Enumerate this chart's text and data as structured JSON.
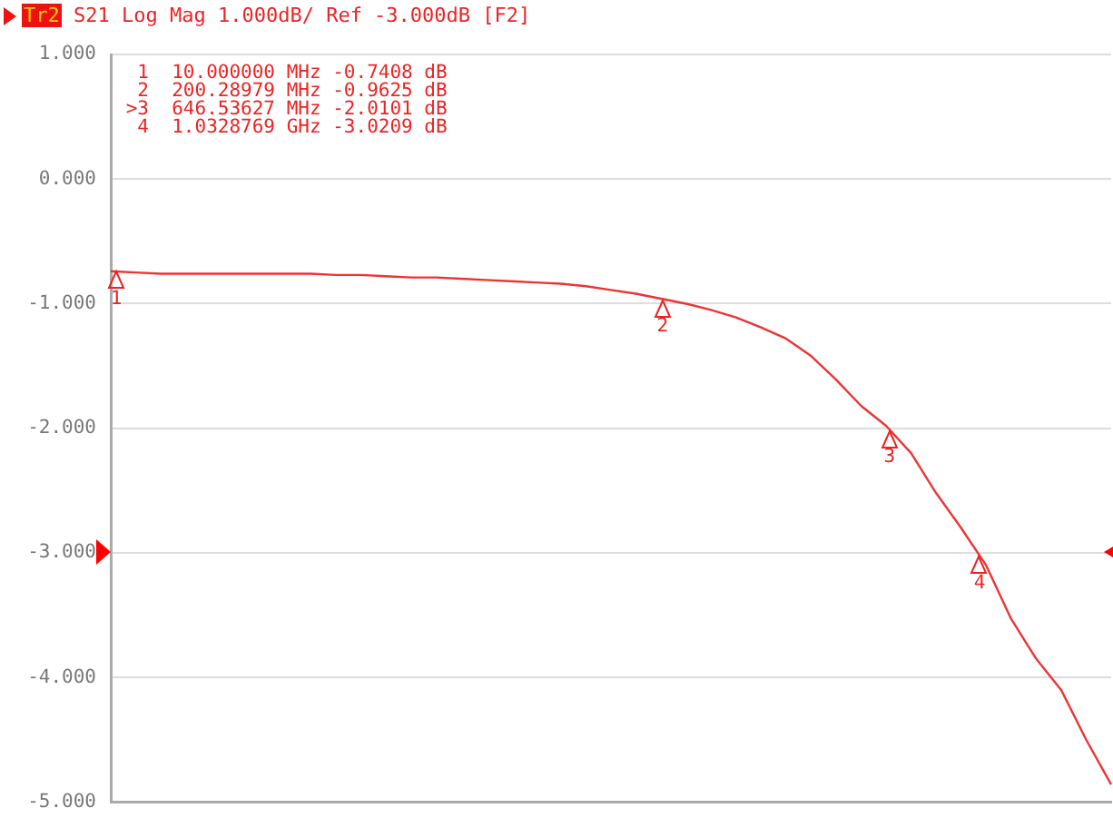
{
  "chart_data": {
    "type": "line",
    "title": "Tr2 S21 Log Mag 1.000dB/ Ref -3.000dB [F2]",
    "categories": [
      null,
      null,
      null,
      null,
      null,
      null,
      null,
      null,
      null,
      null,
      null,
      null,
      null,
      null,
      null,
      null,
      null,
      null,
      null,
      null,
      null,
      null,
      null,
      null,
      null,
      null,
      null,
      null,
      null,
      null,
      null,
      null,
      null,
      null,
      null,
      null,
      null,
      null,
      null,
      null,
      null
    ],
    "series": [
      {
        "color": "#ee3333",
        "values": [
          -0.74,
          -0.75,
          -0.76,
          -0.76,
          -0.76,
          -0.76,
          -0.76,
          -0.76,
          -0.76,
          -0.77,
          -0.77,
          -0.78,
          -0.79,
          -0.79,
          -0.8,
          -0.81,
          -0.82,
          -0.83,
          -0.84,
          -0.86,
          -0.89,
          -0.92,
          -0.96,
          -1.0,
          -1.05,
          -1.11,
          -1.19,
          -1.28,
          -1.42,
          -1.61,
          -1.82,
          -1.98,
          -2.2,
          -2.52,
          -2.8,
          -3.1,
          -3.53,
          -3.85,
          -4.1,
          -4.5,
          -4.86
        ]
      }
    ],
    "ylim": [
      -5,
      1
    ],
    "yticks": [
      {
        "value": 1,
        "label": "1.000"
      },
      {
        "value": 0,
        "label": "0.000"
      },
      {
        "value": -1,
        "label": "-1.000"
      },
      {
        "value": -2,
        "label": "-2.000"
      },
      {
        "value": -3,
        "label": "-3.000"
      },
      {
        "value": -4,
        "label": "-4.000"
      },
      {
        "value": -5,
        "label": "-5.000"
      }
    ],
    "tick_labels": "y",
    "grid": "y",
    "legend": false,
    "marker": "none",
    "line_style": "solid",
    "annotations": [
      "  1  10.000000 MHz -0.7408 dB",
      "  2  200.28979 MHz -0.9625 dB",
      " >3  646.53627 MHz -2.0101 dB",
      "  4  1.0328769 GHz -3.0209 dB",
      {
        "text": "1",
        "y": -0.7408
      },
      {
        "text": "2",
        "y": -0.9625
      },
      {
        "text": "3",
        "y": -2.0101
      },
      {
        "text": "4",
        "y": -3.0209
      }
    ]
  }
}
